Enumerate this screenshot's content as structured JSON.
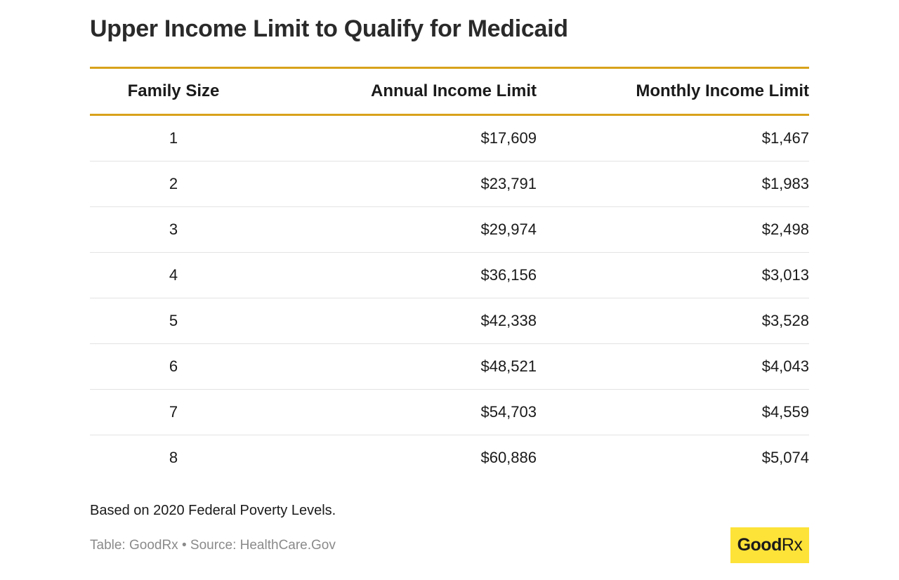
{
  "title": "Upper Income Limit to Qualify for Medicaid",
  "chart_data": {
    "type": "table",
    "title": "Upper Income Limit to Qualify for Medicaid",
    "columns": [
      "Family Size",
      "Annual Income Limit",
      "Monthly Income Limit"
    ],
    "rows": [
      [
        "1",
        "$17,609",
        "$1,467"
      ],
      [
        "2",
        "$23,791",
        "$1,983"
      ],
      [
        "3",
        "$29,974",
        "$2,498"
      ],
      [
        "4",
        "$36,156",
        "$3,013"
      ],
      [
        "5",
        "$42,338",
        "$3,528"
      ],
      [
        "6",
        "$48,521",
        "$4,043"
      ],
      [
        "7",
        "$54,703",
        "$4,559"
      ],
      [
        "8",
        "$60,886",
        "$5,074"
      ]
    ]
  },
  "note": "Based on 2020 Federal Poverty Levels.",
  "source": "Table: GoodRx • Source: HealthCare.Gov",
  "logo": {
    "text_main": "Good",
    "text_rx": "Rx",
    "background_color": "#fde238"
  },
  "colors": {
    "header_rule": "#d9a21b",
    "row_divider": "#e3e3e3"
  }
}
